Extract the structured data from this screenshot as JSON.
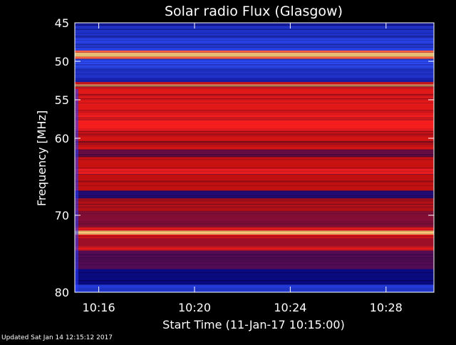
{
  "chart_data": {
    "type": "heatmap",
    "title": "Solar radio Flux (Glasgow)",
    "xlabel": "Start Time (11-Jan-17 10:15:00)",
    "ylabel": "Frequency [MHz]",
    "x_unit": "minutes after 10:15",
    "xlim": [
      0,
      15
    ],
    "ylim": [
      45,
      80
    ],
    "y_inverted": true,
    "y_ticks": [
      {
        "value": 45,
        "label": "45"
      },
      {
        "value": 50,
        "label": "50"
      },
      {
        "value": 55,
        "label": "55"
      },
      {
        "value": 60,
        "label": "60"
      },
      {
        "value": 70,
        "label": "70"
      },
      {
        "value": 80,
        "label": "80"
      }
    ],
    "x_ticks": [
      {
        "value": 1,
        "label": "10:16"
      },
      {
        "value": 5,
        "label": "10:20"
      },
      {
        "value": 9,
        "label": "10:24"
      },
      {
        "value": 13,
        "label": "10:28"
      }
    ],
    "bands": [
      {
        "from": 45.0,
        "to": 45.4,
        "level": 0.05
      },
      {
        "from": 45.4,
        "to": 47.0,
        "level": 0.1
      },
      {
        "from": 47.0,
        "to": 48.6,
        "level": 0.14
      },
      {
        "from": 48.6,
        "to": 48.9,
        "level": 0.8
      },
      {
        "from": 48.9,
        "to": 49.4,
        "level": 0.98
      },
      {
        "from": 49.4,
        "to": 49.7,
        "level": 0.8
      },
      {
        "from": 49.7,
        "to": 51.0,
        "level": 0.16
      },
      {
        "from": 51.0,
        "to": 52.2,
        "level": 0.1
      },
      {
        "from": 52.2,
        "to": 52.7,
        "level": 0.06
      },
      {
        "from": 52.7,
        "to": 53.0,
        "level": 0.55
      },
      {
        "from": 53.0,
        "to": 53.3,
        "level": 0.92
      },
      {
        "from": 53.3,
        "to": 53.6,
        "level": 0.6
      },
      {
        "from": 53.6,
        "to": 57.0,
        "level": 0.58
      },
      {
        "from": 57.0,
        "to": 59.0,
        "level": 0.66
      },
      {
        "from": 59.0,
        "to": 61.5,
        "level": 0.52
      },
      {
        "from": 61.5,
        "to": 62.4,
        "level": 0.38
      },
      {
        "from": 62.4,
        "to": 64.0,
        "level": 0.48
      },
      {
        "from": 64.0,
        "to": 64.7,
        "level": 0.7
      },
      {
        "from": 64.7,
        "to": 66.8,
        "level": 0.45
      },
      {
        "from": 66.8,
        "to": 67.8,
        "level": 0.32
      },
      {
        "from": 67.8,
        "to": 69.5,
        "level": 0.44
      },
      {
        "from": 69.5,
        "to": 71.5,
        "level": 0.4
      },
      {
        "from": 71.5,
        "to": 72.0,
        "level": 0.6
      },
      {
        "from": 72.0,
        "to": 72.5,
        "level": 0.96
      },
      {
        "from": 72.5,
        "to": 73.0,
        "level": 0.55
      },
      {
        "from": 73.0,
        "to": 74.0,
        "level": 0.42
      },
      {
        "from": 74.0,
        "to": 74.6,
        "level": 0.62
      },
      {
        "from": 74.6,
        "to": 77.0,
        "level": 0.36
      },
      {
        "from": 77.0,
        "to": 79.0,
        "level": 0.3
      },
      {
        "from": 79.0,
        "to": 80.0,
        "level": 0.22
      }
    ],
    "colors": {
      "low": "#0a0a80",
      "mid_low": "#3050ff",
      "mid": "#c01010",
      "high": "#ff2020",
      "peak": "#ffe080"
    }
  },
  "footer": {
    "updated": "Updated Sat Jan 14 12:15:12 2017"
  }
}
